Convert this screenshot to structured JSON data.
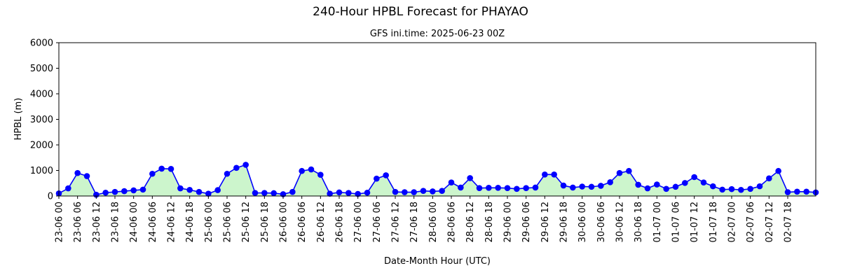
{
  "chart_data": {
    "type": "line",
    "title": "240-Hour HPBL Forecast for PHAYAO",
    "subtitle": "GFS ini.time: 2025-06-23 00Z",
    "xlabel": "Date-Month Hour (UTC)",
    "ylabel": "HPBL (m)",
    "ylim": [
      0,
      6000
    ],
    "yticks": [
      0,
      1000,
      2000,
      3000,
      4000,
      5000,
      6000
    ],
    "grid": false,
    "legend": "none",
    "x_step_hours": 3,
    "xtick_labels": [
      "23-06 00",
      "23-06 06",
      "23-06 12",
      "23-06 18",
      "24-06 00",
      "24-06 06",
      "24-06 12",
      "24-06 18",
      "25-06 00",
      "25-06 06",
      "25-06 12",
      "25-06 18",
      "26-06 00",
      "26-06 06",
      "26-06 12",
      "26-06 18",
      "27-06 00",
      "27-06 06",
      "27-06 12",
      "27-06 18",
      "28-06 00",
      "28-06 06",
      "28-06 12",
      "28-06 18",
      "29-06 00",
      "29-06 06",
      "29-06 12",
      "29-06 18",
      "30-06 00",
      "30-06 06",
      "30-06 12",
      "30-06 18",
      "01-07 00",
      "01-07 06",
      "01-07 12",
      "01-07 18",
      "02-07 00",
      "02-07 06",
      "02-07 12",
      "02-07 18"
    ],
    "series": [
      {
        "name": "",
        "color": "#0000ff",
        "fill_color": "#ccf5cc",
        "values": [
          100,
          300,
          900,
          780,
          50,
          130,
          160,
          190,
          220,
          250,
          870,
          1070,
          1060,
          300,
          240,
          160,
          90,
          230,
          870,
          1100,
          1220,
          120,
          120,
          110,
          70,
          160,
          980,
          1040,
          830,
          90,
          140,
          120,
          80,
          130,
          680,
          810,
          160,
          150,
          150,
          200,
          180,
          200,
          530,
          330,
          700,
          310,
          320,
          320,
          310,
          280,
          310,
          330,
          840,
          840,
          410,
          330,
          370,
          360,
          400,
          540,
          900,
          980,
          440,
          300,
          450,
          280,
          360,
          510,
          740,
          530,
          380,
          250,
          270,
          240,
          280,
          380,
          690,
          980,
          150,
          170,
          170,
          140
        ]
      }
    ]
  }
}
